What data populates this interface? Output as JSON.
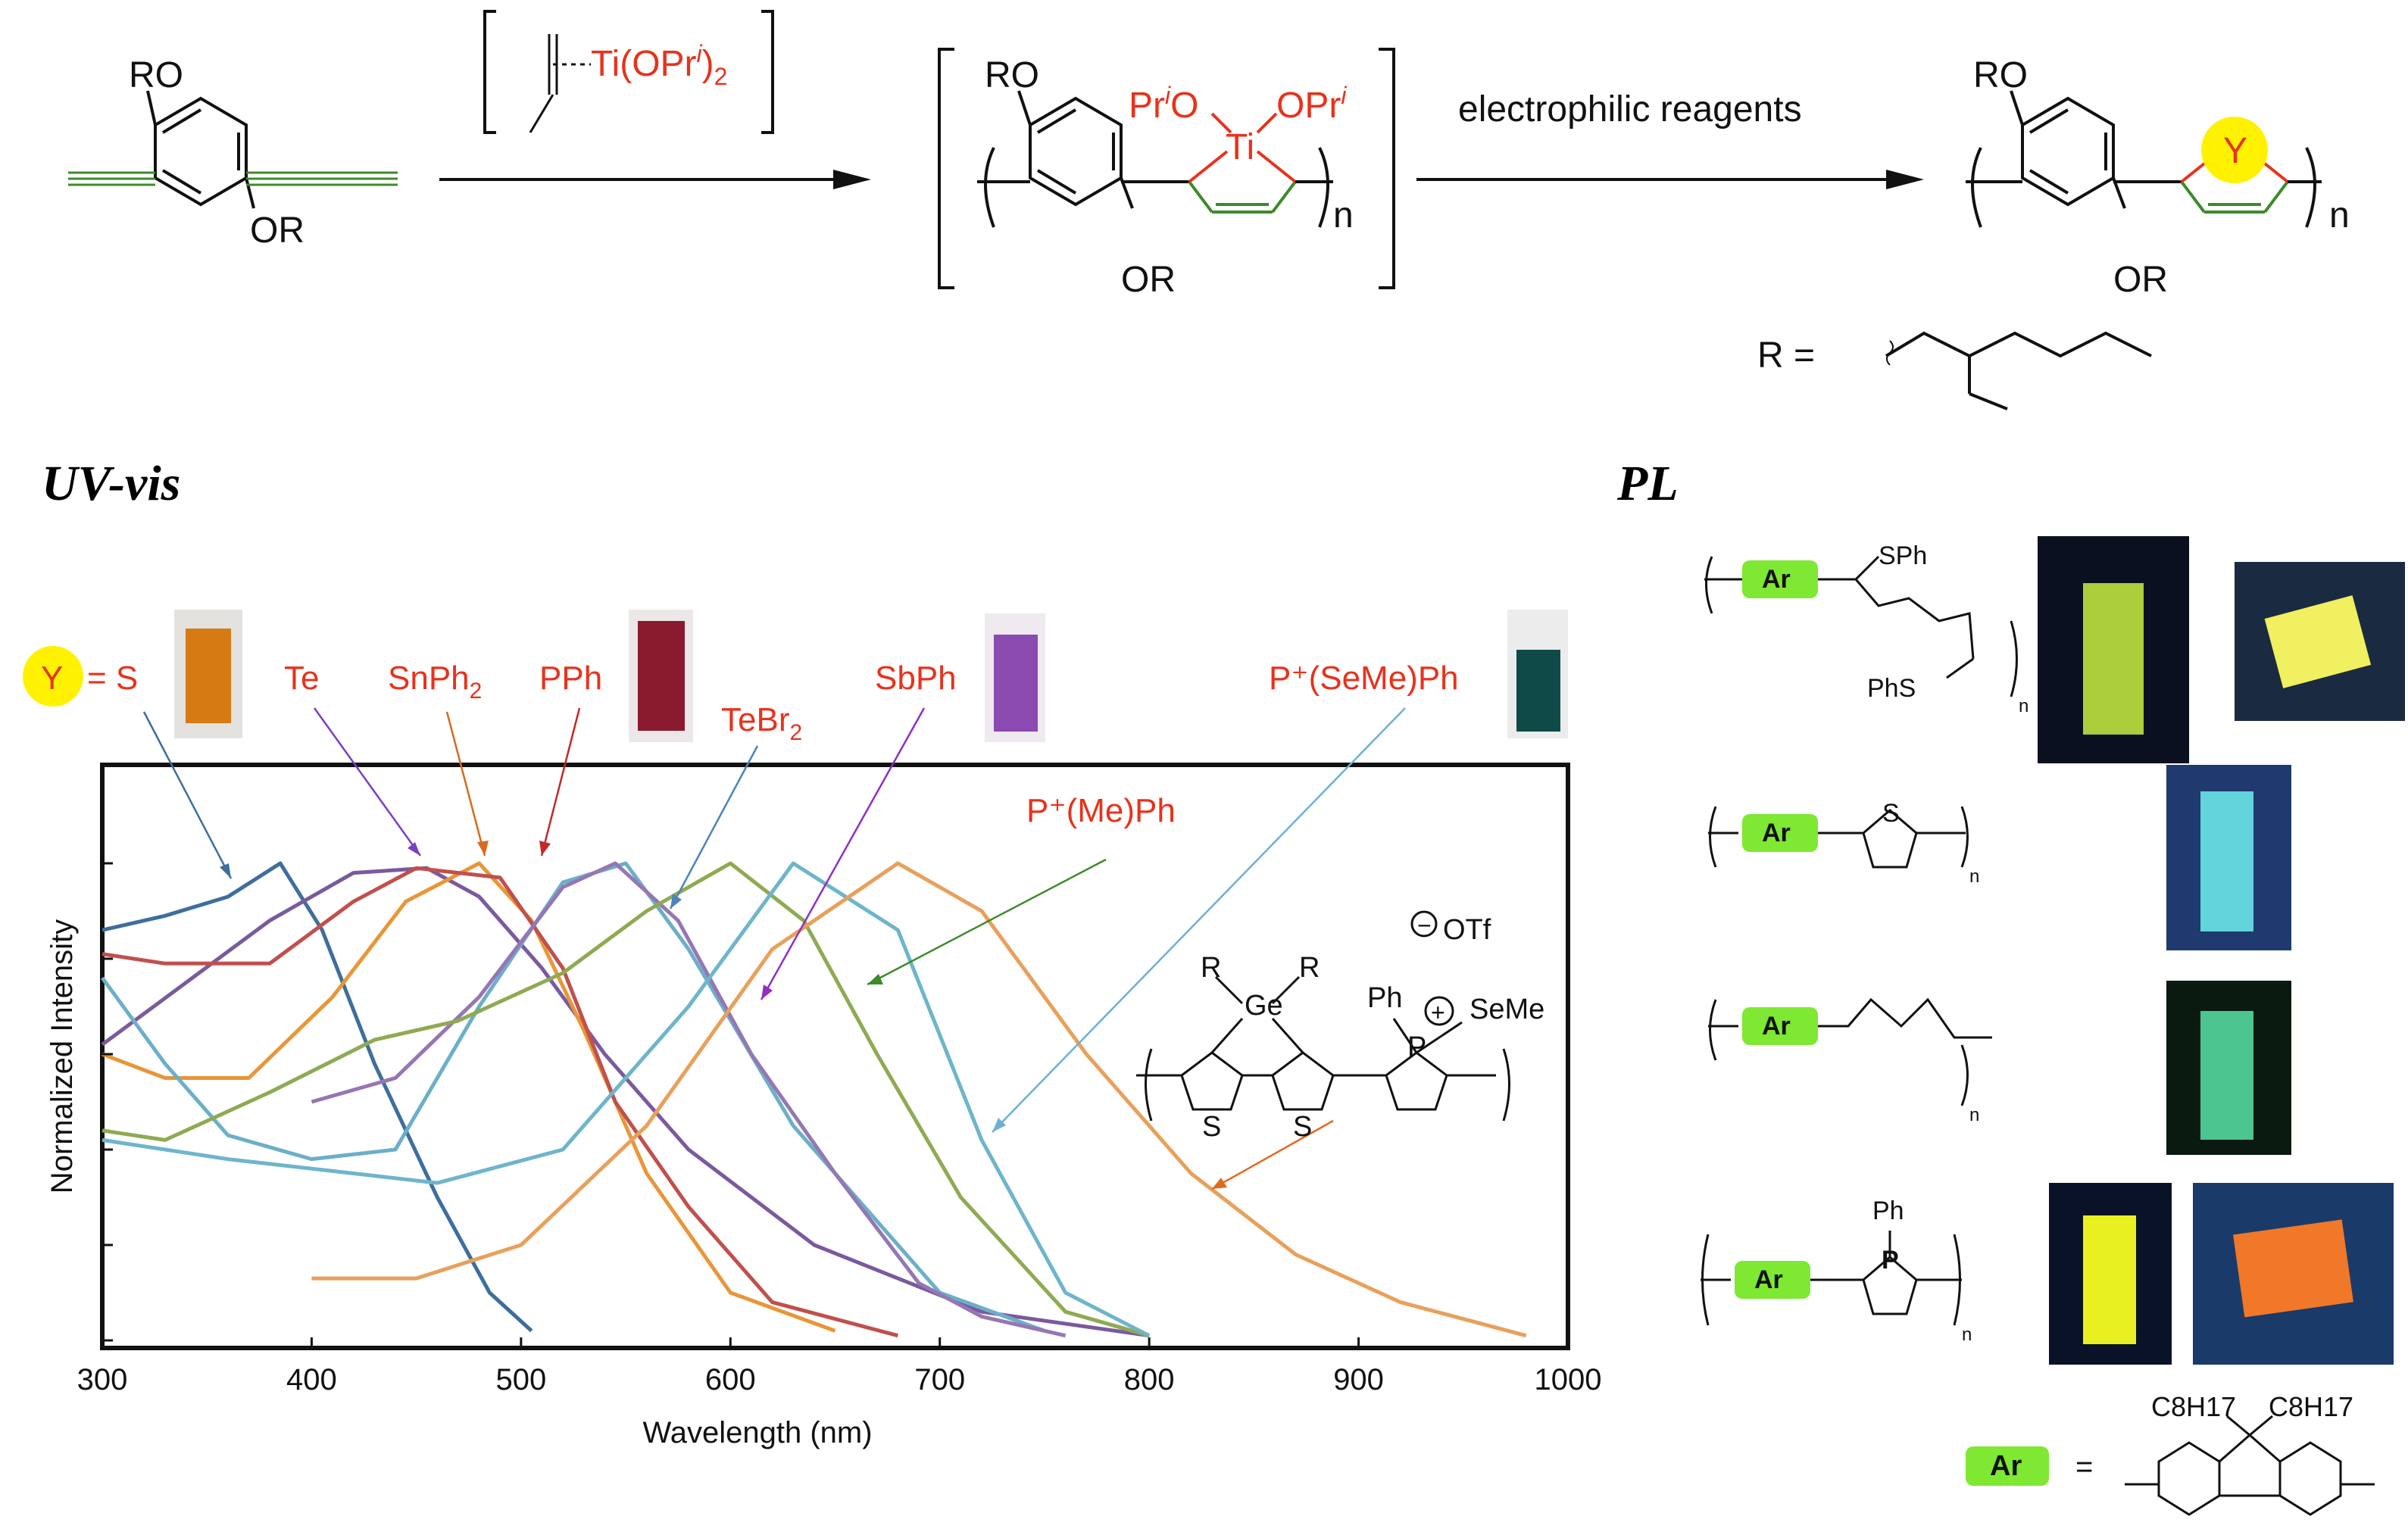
{
  "scheme": {
    "reagent_label": "Ti(OPr",
    "reagent_sup": "i",
    "reagent_sub": ")2",
    "arrow2_label": "electrophilic reagents",
    "subst_ro": "RO",
    "subst_or": "OR",
    "ti_center": "Ti",
    "ti_left": "Pr",
    "ti_left_sup": "i",
    "ti_left_o": "O",
    "ti_right": "OPr",
    "ti_right_sup": "i",
    "repeat_n": "n",
    "heteroatom": "Y",
    "r_def": "R ="
  },
  "titles": {
    "uvvis": "UV-vis",
    "pl": "PL"
  },
  "chart_data": {
    "type": "line",
    "xlabel": "Wavelength (nm)",
    "ylabel": "Normalized Intensity",
    "xlim": [
      300,
      1000
    ],
    "ylim": [
      0,
      1
    ],
    "x_ticks": [
      "300",
      "400",
      "500",
      "600",
      "700",
      "800",
      "900",
      "1000"
    ],
    "grid": false,
    "series": [
      {
        "name": "S",
        "color": "#3d6e9e",
        "x": [
          300,
          330,
          360,
          385,
          405,
          430,
          460,
          485,
          505
        ],
        "y": [
          0.86,
          0.89,
          0.93,
          1.0,
          0.86,
          0.58,
          0.3,
          0.1,
          0.02
        ]
      },
      {
        "name": "Te",
        "color": "#7a5a9e",
        "x": [
          300,
          340,
          380,
          420,
          455,
          480,
          510,
          540,
          580,
          640,
          720,
          800
        ],
        "y": [
          0.62,
          0.75,
          0.88,
          0.98,
          0.99,
          0.93,
          0.78,
          0.6,
          0.4,
          0.2,
          0.06,
          0.01
        ]
      },
      {
        "name": "SnPh2",
        "color": "#e89638",
        "x": [
          300,
          330,
          370,
          410,
          445,
          480,
          505,
          530,
          560,
          600,
          650
        ],
        "y": [
          0.6,
          0.55,
          0.55,
          0.72,
          0.92,
          1.0,
          0.88,
          0.65,
          0.35,
          0.1,
          0.02
        ]
      },
      {
        "name": "PPh",
        "color": "#c0504d",
        "x": [
          300,
          330,
          380,
          420,
          450,
          490,
          520,
          545,
          580,
          620,
          680
        ],
        "y": [
          0.81,
          0.79,
          0.79,
          0.92,
          0.99,
          0.97,
          0.78,
          0.5,
          0.28,
          0.08,
          0.01
        ]
      },
      {
        "name": "TeBr2",
        "color": "#6bafc9",
        "x": [
          300,
          330,
          360,
          400,
          440,
          480,
          520,
          550,
          580,
          630,
          700,
          750
        ],
        "y": [
          0.76,
          0.58,
          0.43,
          0.38,
          0.4,
          0.7,
          0.96,
          1.0,
          0.82,
          0.45,
          0.1,
          0.02
        ]
      },
      {
        "name": "SbPh",
        "color": "#9577b3",
        "x": [
          400,
          440,
          480,
          520,
          545,
          575,
          610,
          650,
          690,
          720,
          760
        ],
        "y": [
          0.5,
          0.55,
          0.72,
          0.95,
          1.0,
          0.88,
          0.6,
          0.35,
          0.12,
          0.05,
          0.01
        ]
      },
      {
        "name": "P+(Me)Ph",
        "color": "#8faa52",
        "x": [
          300,
          330,
          380,
          430,
          470,
          520,
          560,
          600,
          635,
          670,
          710,
          760,
          800
        ],
        "y": [
          0.44,
          0.42,
          0.52,
          0.63,
          0.67,
          0.77,
          0.9,
          1.0,
          0.88,
          0.6,
          0.3,
          0.06,
          0.01
        ]
      },
      {
        "name": "P+(SeMe)Ph",
        "color": "#6eb5cc",
        "x": [
          300,
          360,
          420,
          460,
          520,
          580,
          630,
          680,
          720,
          760,
          800
        ],
        "y": [
          0.42,
          0.38,
          0.35,
          0.33,
          0.4,
          0.7,
          1.0,
          0.86,
          0.42,
          0.1,
          0.01
        ]
      },
      {
        "name": "P+(SeMe)Ph orange",
        "color": "#e8a05a",
        "x": [
          400,
          450,
          500,
          560,
          620,
          680,
          720,
          770,
          820,
          870,
          920,
          980
        ],
        "y": [
          0.13,
          0.13,
          0.2,
          0.45,
          0.82,
          1.0,
          0.9,
          0.6,
          0.35,
          0.18,
          0.08,
          0.01
        ]
      }
    ]
  },
  "uv_labels": {
    "y_eq": "Y",
    "s": "= S",
    "te": "Te",
    "snph": "SnPh",
    "snph_sub": "2",
    "pph": "PPh",
    "tebr": "TeBr",
    "tebr_sub": "2",
    "sbph": "SbPh",
    "pseme": "P⁺(SeMe)Ph",
    "pme": "P⁺(Me)Ph"
  },
  "structure_labels": {
    "ge": "Ge",
    "r": "R",
    "ph": "Ph",
    "p": "P",
    "seme": "SeMe",
    "s": "S",
    "otf": "OTf",
    "plus": "+",
    "minus": "−"
  },
  "pl": {
    "ar": "Ar",
    "sph": "SPh",
    "phs": "PhS",
    "s": "S",
    "ph": "Ph",
    "p": "P",
    "n": "n",
    "ar_def_eq": "=",
    "c8h17_left": "C8H17",
    "c8h17_right": "C8H17"
  },
  "colors": {
    "red_text": "#e8321c",
    "green_bond": "#3e8a2c",
    "highlight_yellow": "#fff200",
    "ar_green": "#7ee832"
  }
}
